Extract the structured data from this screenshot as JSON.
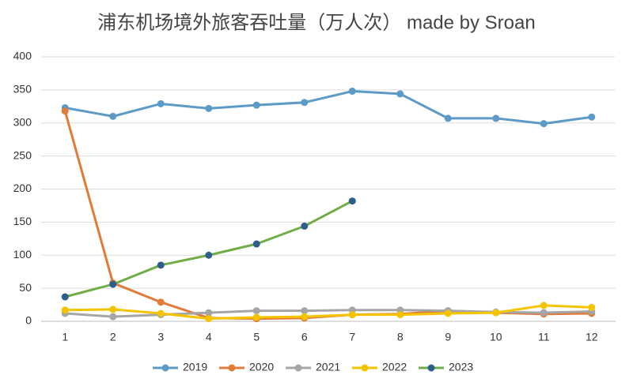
{
  "chart_data": {
    "type": "line",
    "title": "浦东机场境外旅客吞吐量（万人次） made by Sroan",
    "categories": [
      "1",
      "2",
      "3",
      "4",
      "5",
      "6",
      "7",
      "8",
      "9",
      "10",
      "11",
      "12"
    ],
    "series": [
      {
        "name": "2019",
        "color": "#5b9bc5",
        "values": [
          323,
          310,
          329,
          322,
          327,
          331,
          348,
          344,
          307,
          307,
          299,
          309
        ]
      },
      {
        "name": "2020",
        "color": "#e07b39",
        "values": [
          318,
          58,
          29,
          5,
          4,
          5,
          10,
          11,
          16,
          13,
          11,
          12
        ]
      },
      {
        "name": "2021",
        "color": "#a5a5a5",
        "values": [
          12,
          7,
          10,
          13,
          16,
          16,
          17,
          17,
          16,
          14,
          13,
          15
        ]
      },
      {
        "name": "2022",
        "color": "#f5c400",
        "values": [
          17,
          18,
          12,
          4,
          6,
          7,
          10,
          10,
          12,
          13,
          24,
          21
        ]
      },
      {
        "name": "2023",
        "color": "#70ad47",
        "marker_color": "#2e5f8a",
        "values": [
          37,
          56,
          85,
          100,
          117,
          144,
          182,
          null,
          null,
          null,
          null,
          null
        ]
      }
    ],
    "ylim": [
      0,
      400
    ],
    "yticks": [
      0,
      50,
      100,
      150,
      200,
      250,
      300,
      350,
      400
    ],
    "grid": true,
    "legend": "bottom"
  }
}
